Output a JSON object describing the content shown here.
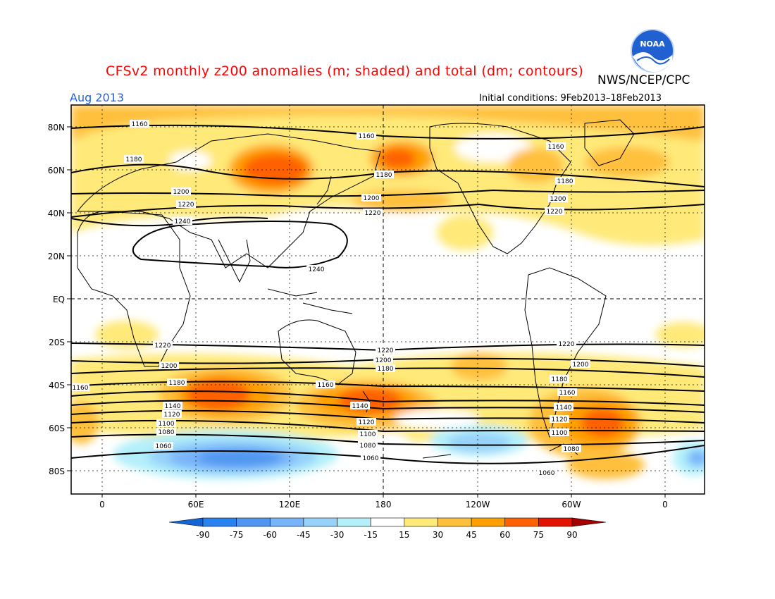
{
  "title": "CFSv2 monthly z200 anomalies (m; shaded) and total (dm; contours)",
  "agency": "NWS/NCEP/CPC",
  "logo_text": "NOAA",
  "month": "Aug 2013",
  "initial_conditions": "Initial conditions: 9Feb2013–18Feb2013",
  "lat_labels": [
    "80N",
    "60N",
    "40N",
    "20N",
    "EQ",
    "20S",
    "40S",
    "60S",
    "80S"
  ],
  "lon_labels": [
    "0",
    "60E",
    "120E",
    "180",
    "120W",
    "60W",
    "0"
  ],
  "colorbar": {
    "ticks": [
      "-90",
      "-75",
      "-60",
      "-45",
      "-30",
      "-15",
      "15",
      "30",
      "45",
      "60",
      "75",
      "90"
    ],
    "colors": [
      "#1464d2",
      "#2882f0",
      "#5096f0",
      "#78b4fa",
      "#96d2fa",
      "#b4f0fa",
      "#ffffff",
      "#ffe978",
      "#ffc03c",
      "#ffa000",
      "#ff6000",
      "#e11400",
      "#a50000"
    ]
  },
  "contour_labels": [
    "1160",
    "1180",
    "1200",
    "1220",
    "1240",
    "1160",
    "1180",
    "1200",
    "1220",
    "1240",
    "1160",
    "1180",
    "1200",
    "1220",
    "1220",
    "1220",
    "1200",
    "1180",
    "1160",
    "1140",
    "1120",
    "1100",
    "1080",
    "1060",
    "1220",
    "1200",
    "1180",
    "1160",
    "1140",
    "1120",
    "1100",
    "1080",
    "1060",
    "1160",
    "1180",
    "1200",
    "1220",
    "1060",
    "1080",
    "1100",
    "1120",
    "1140",
    "1160",
    "1180",
    "1200",
    "1220",
    "1160",
    "1140",
    "1120",
    "1100",
    "1080",
    "1060"
  ]
}
